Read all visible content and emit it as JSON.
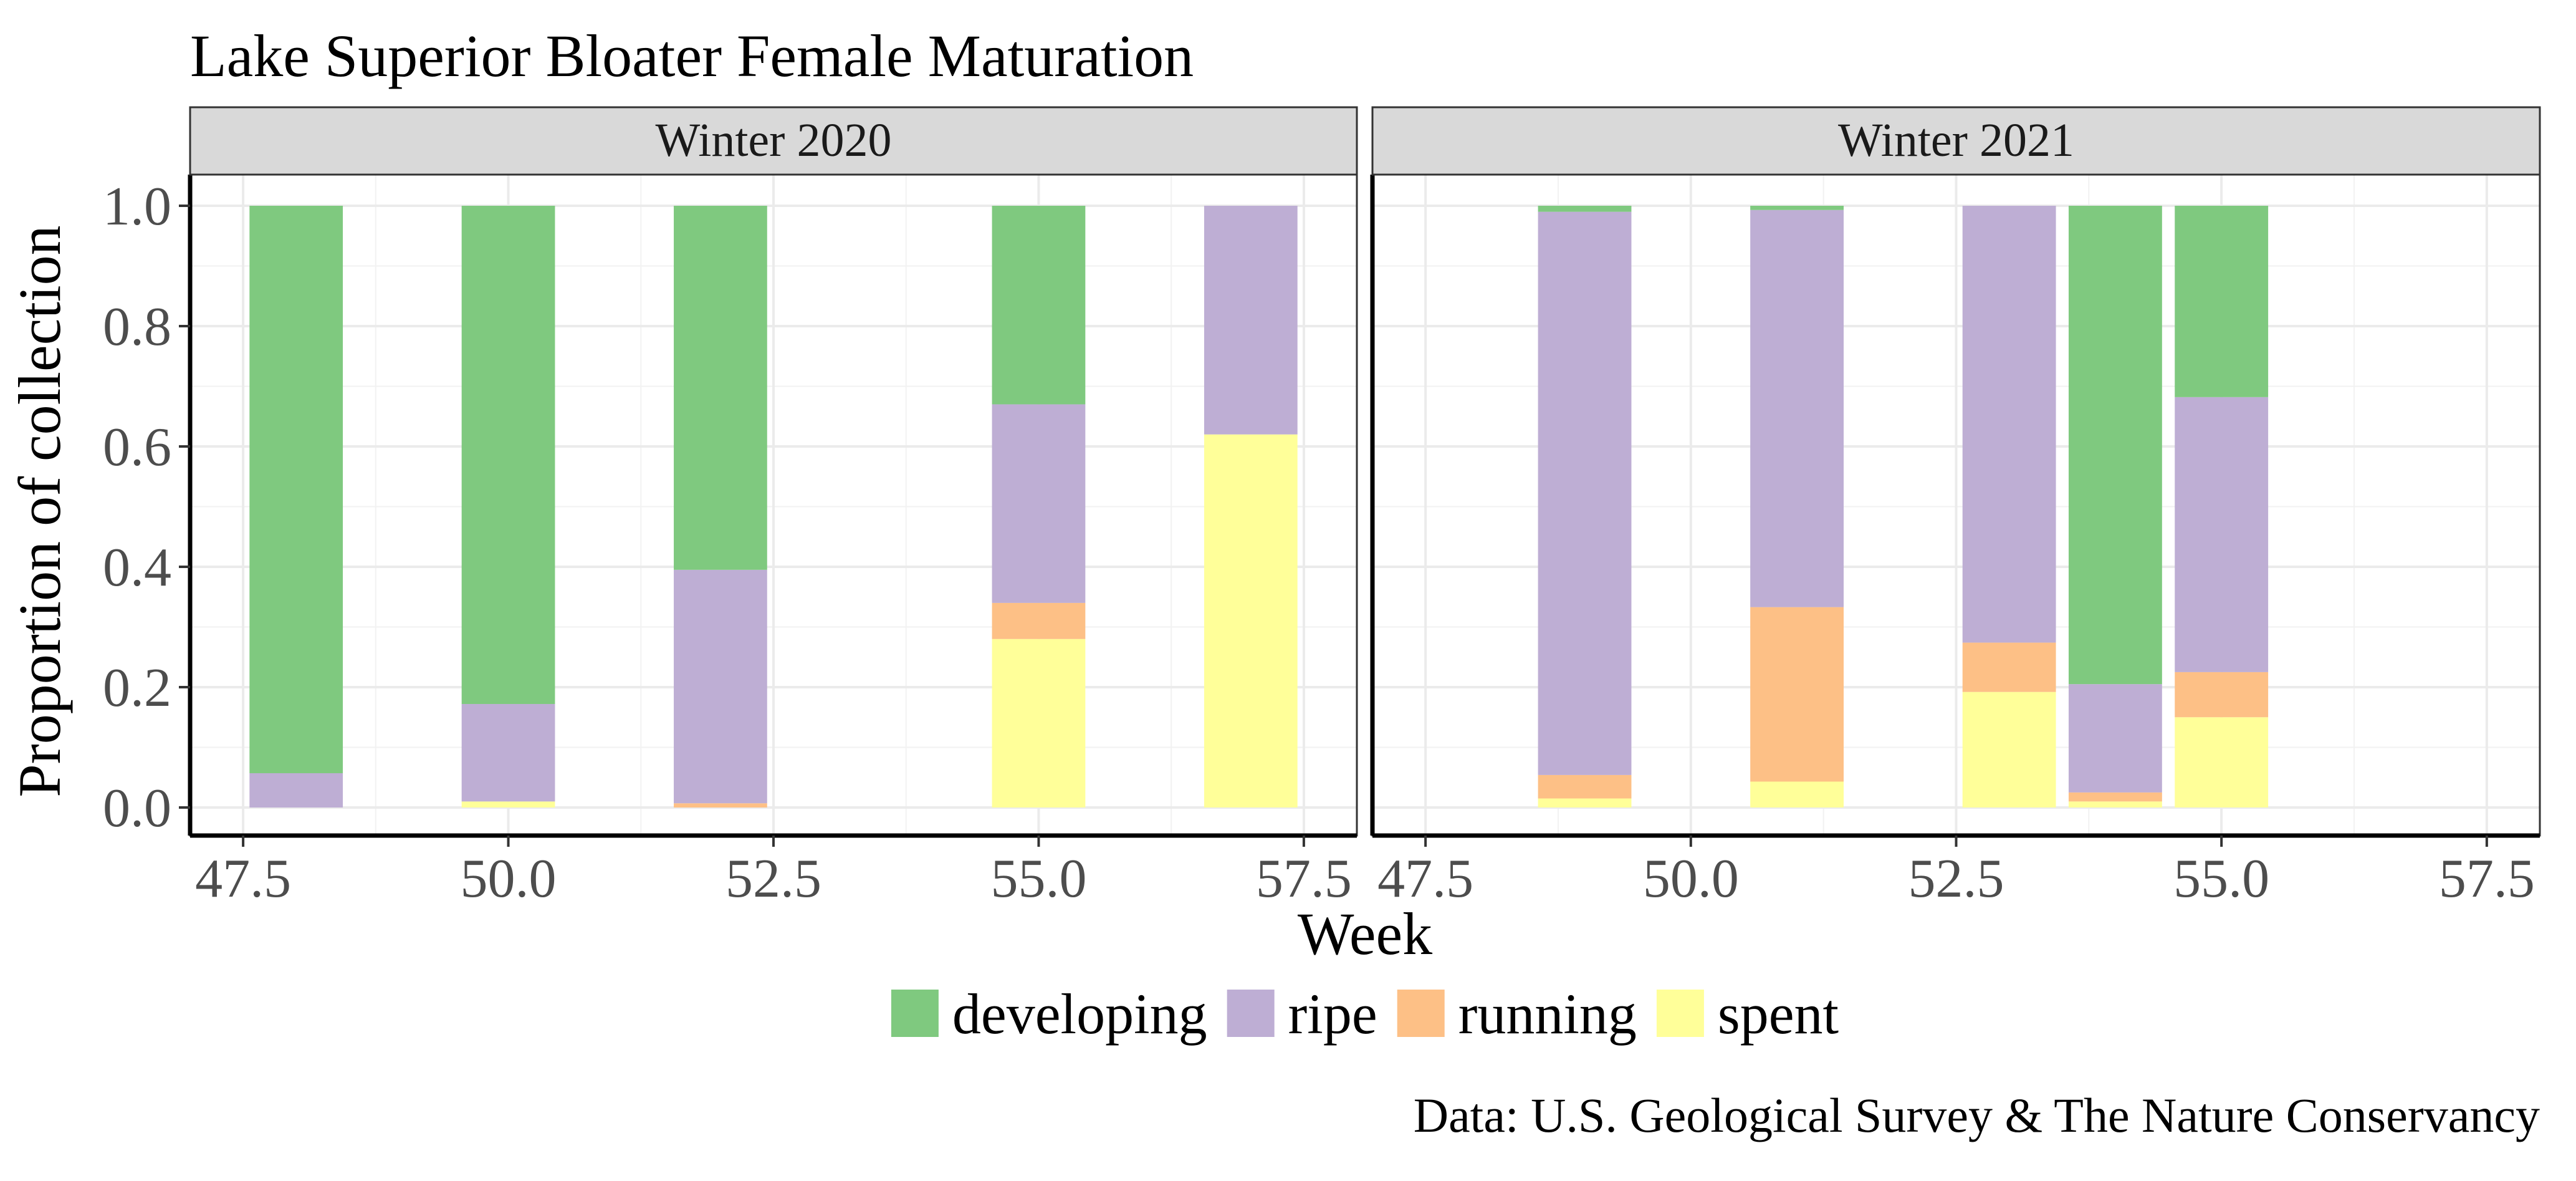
{
  "chart_data": {
    "type": "bar",
    "stacked": true,
    "faceted": true,
    "title": "Lake Superior Bloater Female Maturation",
    "xlabel": "Week",
    "ylabel": "Proportion of collection",
    "caption": "Data: U.S. Geological Survey & The Nature Conservancy",
    "xlim": [
      47,
      58
    ],
    "ylim": [
      0,
      1
    ],
    "xticks": [
      {
        "value": 47.5,
        "label": "47.5"
      },
      {
        "value": 50.0,
        "label": "50.0"
      },
      {
        "value": 52.5,
        "label": "52.5"
      },
      {
        "value": 55.0,
        "label": "55.0"
      },
      {
        "value": 57.5,
        "label": "57.5"
      }
    ],
    "yticks": [
      {
        "value": 0.0,
        "label": "0.0"
      },
      {
        "value": 0.2,
        "label": "0.2"
      },
      {
        "value": 0.4,
        "label": "0.4"
      },
      {
        "value": 0.6,
        "label": "0.6"
      },
      {
        "value": 0.8,
        "label": "0.8"
      },
      {
        "value": 1.0,
        "label": "1.0"
      }
    ],
    "grid": true,
    "legend_position": "bottom",
    "stack_order": [
      "spent",
      "running",
      "ripe",
      "developing"
    ],
    "legend": [
      {
        "key": "developing",
        "label": "developing",
        "color": "#7fc97f"
      },
      {
        "key": "ripe",
        "label": "ripe",
        "color": "#beaed4"
      },
      {
        "key": "running",
        "label": "running",
        "color": "#fdc086"
      },
      {
        "key": "spent",
        "label": "spent",
        "color": "#ffff99"
      }
    ],
    "panels": [
      {
        "name": "Winter 2020",
        "bars": [
          {
            "x": 48.0,
            "developing": 0.943,
            "ripe": 0.057,
            "running": 0.0,
            "spent": 0.0
          },
          {
            "x": 50.0,
            "developing": 0.828,
            "ripe": 0.162,
            "running": 0.0,
            "spent": 0.01
          },
          {
            "x": 52.0,
            "developing": 0.605,
            "ripe": 0.388,
            "running": 0.007,
            "spent": 0.0
          },
          {
            "x": 55.0,
            "developing": 0.33,
            "ripe": 0.33,
            "running": 0.06,
            "spent": 0.28
          },
          {
            "x": 57.0,
            "developing": 0.0,
            "ripe": 0.38,
            "running": 0.0,
            "spent": 0.62
          }
        ]
      },
      {
        "name": "Winter 2021",
        "bars": [
          {
            "x": 49.0,
            "developing": 0.01,
            "ripe": 0.936,
            "running": 0.039,
            "spent": 0.015
          },
          {
            "x": 51.0,
            "developing": 0.007,
            "ripe": 0.66,
            "running": 0.29,
            "spent": 0.043
          },
          {
            "x": 53.0,
            "developing": 0.0,
            "ripe": 0.726,
            "running": 0.082,
            "spent": 0.192
          },
          {
            "x": 54.0,
            "developing": 0.795,
            "ripe": 0.18,
            "running": 0.015,
            "spent": 0.01
          },
          {
            "x": 55.0,
            "developing": 0.318,
            "ripe": 0.457,
            "running": 0.075,
            "spent": 0.15
          }
        ]
      }
    ]
  }
}
